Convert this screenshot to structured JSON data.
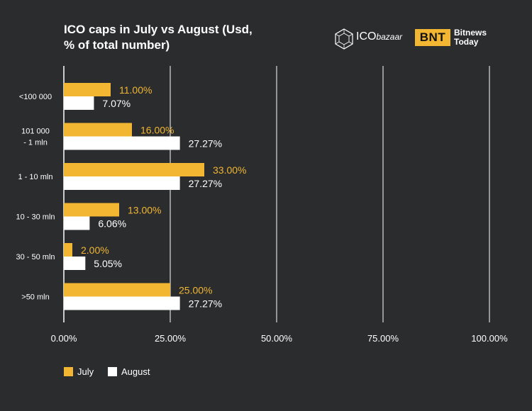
{
  "header": {
    "title_line1": "ICO caps in  July vs August (Usd,",
    "title_line2": "% of total number)"
  },
  "brands": {
    "ico_name": "ICO",
    "ico_sub": "bazaar",
    "bnt_badge": "BNT",
    "bnt_line1": "Bitnews",
    "bnt_line2": "Today"
  },
  "colors": {
    "background": "#2a2c2e",
    "july": "#f2b632",
    "august": "#ffffff",
    "grid": "#ffffff"
  },
  "chart_data": {
    "type": "bar",
    "orientation": "horizontal",
    "categories": [
      "<100 000",
      "101 000\n- 1 mln",
      "1 - 10 mln",
      "10 - 30 mln",
      "30 - 50 mln",
      ">50 mln"
    ],
    "series": [
      {
        "name": "July",
        "values": [
          11.0,
          16.0,
          33.0,
          13.0,
          2.0,
          25.0
        ]
      },
      {
        "name": "August",
        "values": [
          7.07,
          27.27,
          27.27,
          6.06,
          5.05,
          27.27
        ]
      }
    ],
    "value_labels": {
      "July": [
        "11.00%",
        "16.00%",
        "33.00%",
        "13.00%",
        "2.00%",
        "25.00%"
      ],
      "August": [
        "7.07%",
        "27.27%",
        "27.27%",
        "6.06%",
        "5.05%",
        "27.27%"
      ]
    },
    "xlim": [
      0,
      100
    ],
    "xticks": [
      0,
      25,
      50,
      75,
      100
    ],
    "xtick_labels": [
      "0.00%",
      "25.00%",
      "50.00%",
      "75.00%",
      "100.00%"
    ],
    "grid": true,
    "legend_position": "bottom-left",
    "title": "ICO caps in  July vs August (Usd, % of total number)",
    "xlabel": "",
    "ylabel": ""
  },
  "legend": {
    "july_label": "July",
    "august_label": "August"
  }
}
